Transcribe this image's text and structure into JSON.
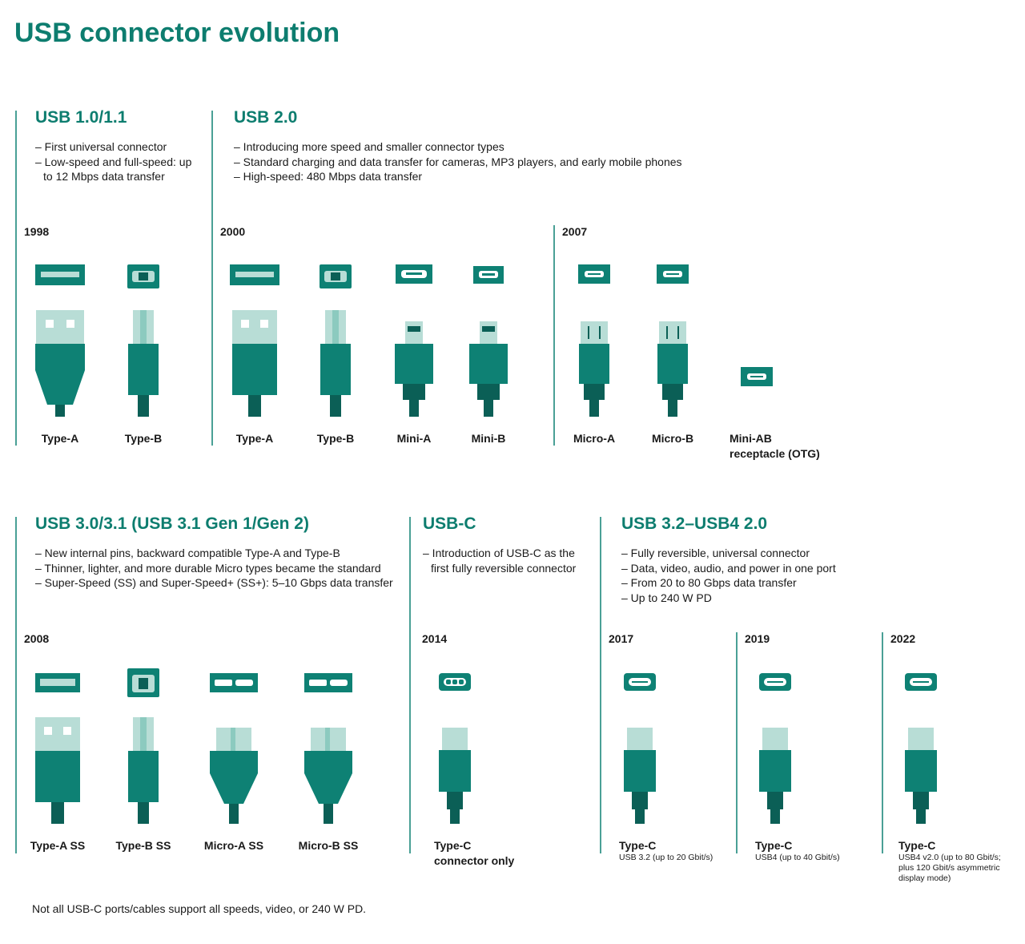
{
  "title": "USB connector evolution",
  "sections": [
    {
      "heading": "USB 1.0/1.1",
      "bullets": [
        "– First universal connector",
        "– Low-speed and full-speed: up to 12 Mbps data transfer"
      ],
      "groups": [
        {
          "year": "1998",
          "connectors": [
            {
              "label": "Type-A"
            },
            {
              "label": "Type-B"
            }
          ]
        }
      ]
    },
    {
      "heading": "USB 2.0",
      "bullets": [
        "– Introducing more speed and smaller connector types",
        "– Standard charging and data transfer for cameras, MP3 players, and early mobile phones",
        "– High-speed: 480 Mbps data transfer"
      ],
      "groups": [
        {
          "year": "2000",
          "connectors": [
            {
              "label": "Type-A"
            },
            {
              "label": "Type-B"
            },
            {
              "label": "Mini-A"
            },
            {
              "label": "Mini-B"
            }
          ]
        },
        {
          "year": "2007",
          "connectors": [
            {
              "label": "Micro-A"
            },
            {
              "label": "Micro-B"
            },
            {
              "label": "Mini-AB receptacle (OTG)"
            }
          ]
        }
      ]
    },
    {
      "heading": "USB 3.0/3.1 (USB 3.1 Gen 1/Gen 2)",
      "bullets": [
        "– New internal pins, backward compatible Type-A and Type-B",
        "– Thinner, lighter, and more durable Micro types became the standard",
        "– Super-Speed (SS) and Super-Speed+ (SS+): 5–10 Gbps data transfer"
      ],
      "groups": [
        {
          "year": "2008",
          "connectors": [
            {
              "label": "Type-A SS"
            },
            {
              "label": "Type-B SS"
            },
            {
              "label": "Micro-A SS"
            },
            {
              "label": "Micro-B SS"
            }
          ]
        }
      ]
    },
    {
      "heading": "USB-C",
      "bullets": [
        "– Introduction of USB-C as the first fully reversible connector"
      ],
      "groups": [
        {
          "year": "2014",
          "connectors": [
            {
              "label": "Type-C connector only"
            }
          ]
        }
      ]
    },
    {
      "heading": "USB 3.2–USB4 2.0",
      "bullets": [
        "– Fully reversible, universal connector",
        "– Data, video, audio, and power in one port",
        "– From 20 to 80 Gbps data transfer",
        "– Up to 240 W PD"
      ],
      "groups": [
        {
          "year": "2017",
          "connectors": [
            {
              "label": "Type-C",
              "sublabel": "USB 3.2 (up to 20 Gbit/s)"
            }
          ]
        },
        {
          "year": "2019",
          "connectors": [
            {
              "label": "Type-C",
              "sublabel": "USB4 (up to 40 Gbit/s)"
            }
          ]
        },
        {
          "year": "2022",
          "connectors": [
            {
              "label": "Type-C",
              "sublabel": "USB4 v2.0 (up to 80 Gbit/s; plus 120 Gbit/s asymmetric display mode)"
            }
          ]
        }
      ]
    }
  ],
  "footnote": "Not all USB-C ports/cables support all speeds, video, or 240 W PD."
}
